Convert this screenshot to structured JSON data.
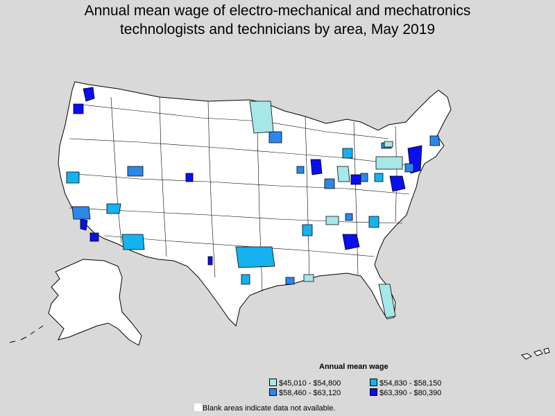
{
  "title": {
    "line1": "Annual mean wage of electro-mechanical and mechatronics",
    "line2": "technologists and technicians by area, May 2019"
  },
  "legend": {
    "title": "Annual mean wage",
    "items": [
      {
        "label": "$45,010 - $54,800",
        "color": "#a6e7e8"
      },
      {
        "label": "$54,830 - $58,150",
        "color": "#15b2ef"
      },
      {
        "label": "$58,460 - $63,120",
        "color": "#2d87ea"
      },
      {
        "label": "$63,390 - $80,390",
        "color": "#0a0ff0"
      }
    ]
  },
  "note": "Blank areas indicate data not available.",
  "colors": {
    "background": "#d9d9d9",
    "land": "#ffffff",
    "border": "#000000"
  }
}
